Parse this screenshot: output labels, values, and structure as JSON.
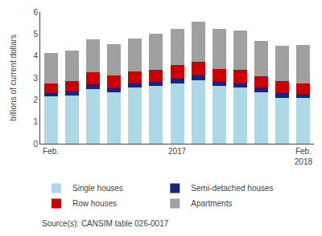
{
  "chart_data": {
    "type": "bar",
    "stacked": true,
    "ylabel": "billions of current dollars",
    "categories": [
      "Feb.",
      null,
      null,
      null,
      null,
      null,
      "2017",
      null,
      null,
      null,
      null,
      null,
      "Feb.\n2018"
    ],
    "series": [
      {
        "name": "Single houses",
        "color": "#add8e6",
        "values": [
          2.15,
          2.2,
          2.5,
          2.35,
          2.55,
          2.62,
          2.75,
          2.9,
          2.65,
          2.55,
          2.35,
          2.1,
          2.08
        ]
      },
      {
        "name": "Semi-detached houses",
        "color": "#1a237e",
        "values": [
          0.2,
          0.2,
          0.2,
          0.2,
          0.2,
          0.2,
          0.22,
          0.22,
          0.2,
          0.2,
          0.2,
          0.2,
          0.2
        ]
      },
      {
        "name": "Row houses",
        "color": "#cc0000",
        "values": [
          0.4,
          0.45,
          0.55,
          0.55,
          0.55,
          0.55,
          0.6,
          0.6,
          0.55,
          0.6,
          0.52,
          0.55,
          0.48
        ]
      },
      {
        "name": "Apartments",
        "color": "#a0a0a0",
        "values": [
          1.4,
          1.4,
          1.5,
          1.45,
          1.5,
          1.65,
          1.68,
          1.83,
          1.85,
          1.8,
          1.6,
          1.6,
          1.74
        ]
      }
    ],
    "ylim": [
      0,
      6
    ],
    "yticks": [
      0,
      1,
      2,
      3,
      4,
      5,
      6
    ],
    "grid": false,
    "legend": "bottom",
    "annotations": [
      "Source(s): CANSIM table 026-0017"
    ]
  }
}
